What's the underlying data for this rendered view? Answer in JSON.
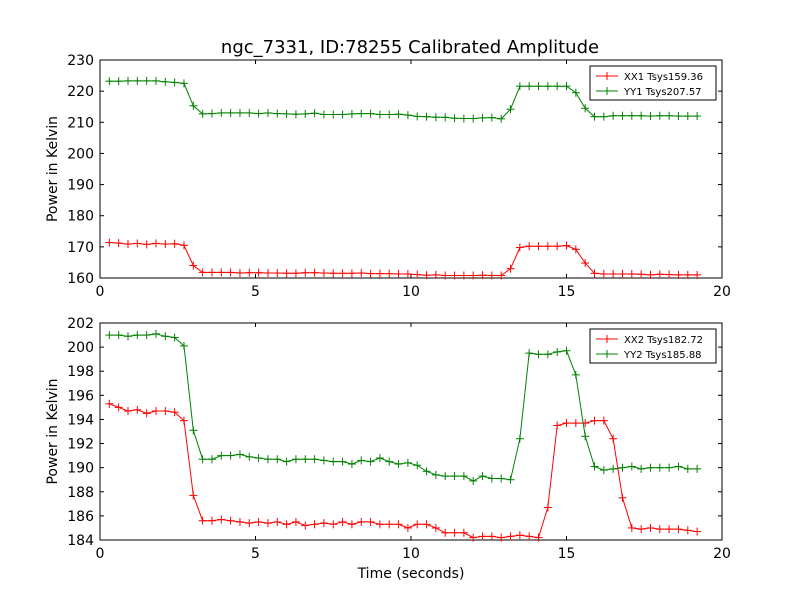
{
  "chart_data": [
    {
      "type": "line",
      "title": "ngc_7331, ID:78255 Calibrated Amplitude",
      "xlabel": "",
      "ylabel": "Power in Kelvin",
      "xlim": [
        0,
        20
      ],
      "ylim": [
        160,
        230
      ],
      "xticks": [
        "0",
        "5",
        "10",
        "15",
        "20"
      ],
      "yticks": [
        "160",
        "170",
        "180",
        "190",
        "200",
        "210",
        "220",
        "230"
      ],
      "legend_position": "top-right",
      "series": [
        {
          "name": "XX1 Tsys159.36",
          "color": "#ff0000",
          "x": [
            0.3,
            0.6,
            0.9,
            1.2,
            1.5,
            1.8,
            2.1,
            2.4,
            2.7,
            3.0,
            3.3,
            3.6,
            3.9,
            4.2,
            4.5,
            4.8,
            5.1,
            5.4,
            5.7,
            6.0,
            6.3,
            6.6,
            6.9,
            7.2,
            7.5,
            7.8,
            8.1,
            8.4,
            8.7,
            9.0,
            9.3,
            9.6,
            9.9,
            10.2,
            10.5,
            10.8,
            11.1,
            11.4,
            11.7,
            12.0,
            12.3,
            12.6,
            12.9,
            13.2,
            13.5,
            13.8,
            14.1,
            14.4,
            14.7,
            15.0,
            15.3,
            15.6,
            15.9,
            16.2,
            16.5,
            16.8,
            17.1,
            17.4,
            17.7,
            18.0,
            18.3,
            18.6,
            18.9,
            19.2
          ],
          "values": [
            171.4,
            171.2,
            170.9,
            171.1,
            170.8,
            171.1,
            170.9,
            171.0,
            170.5,
            164.0,
            161.8,
            161.8,
            161.8,
            161.8,
            161.6,
            161.7,
            161.7,
            161.6,
            161.6,
            161.5,
            161.5,
            161.7,
            161.7,
            161.6,
            161.5,
            161.5,
            161.5,
            161.6,
            161.4,
            161.4,
            161.4,
            161.3,
            161.3,
            161.1,
            160.9,
            161.0,
            160.8,
            160.8,
            160.8,
            160.8,
            160.9,
            160.8,
            160.8,
            163.0,
            169.8,
            170.2,
            170.2,
            170.2,
            170.2,
            170.4,
            169.2,
            164.8,
            161.5,
            161.3,
            161.3,
            161.3,
            161.3,
            161.2,
            161.0,
            161.2,
            161.1,
            161.0,
            161.0,
            161.0
          ]
        },
        {
          "name": "YY1 Tsys207.57",
          "color": "#008000",
          "x": [
            0.3,
            0.6,
            0.9,
            1.2,
            1.5,
            1.8,
            2.1,
            2.4,
            2.7,
            3.0,
            3.3,
            3.6,
            3.9,
            4.2,
            4.5,
            4.8,
            5.1,
            5.4,
            5.7,
            6.0,
            6.3,
            6.6,
            6.9,
            7.2,
            7.5,
            7.8,
            8.1,
            8.4,
            8.7,
            9.0,
            9.3,
            9.6,
            9.9,
            10.2,
            10.5,
            10.8,
            11.1,
            11.4,
            11.7,
            12.0,
            12.3,
            12.6,
            12.9,
            13.2,
            13.5,
            13.8,
            14.1,
            14.4,
            14.7,
            15.0,
            15.3,
            15.6,
            15.9,
            16.2,
            16.5,
            16.8,
            17.1,
            17.4,
            17.7,
            18.0,
            18.3,
            18.6,
            18.9,
            19.2
          ],
          "values": [
            223.2,
            223.2,
            223.3,
            223.3,
            223.3,
            223.3,
            223.0,
            222.8,
            222.5,
            215.3,
            212.7,
            212.8,
            213.0,
            213.0,
            213.0,
            213.0,
            212.8,
            213.0,
            212.8,
            212.7,
            212.6,
            212.7,
            212.9,
            212.5,
            212.5,
            212.5,
            212.7,
            212.8,
            212.8,
            212.5,
            212.5,
            212.6,
            212.3,
            211.9,
            211.8,
            211.6,
            211.6,
            211.3,
            211.2,
            211.2,
            211.4,
            211.5,
            211.1,
            214.2,
            221.6,
            221.6,
            221.6,
            221.6,
            221.6,
            221.6,
            219.5,
            214.5,
            211.8,
            211.8,
            212.1,
            212.1,
            212.1,
            212.1,
            212.0,
            212.1,
            212.1,
            212.0,
            212.0,
            212.0
          ]
        }
      ]
    },
    {
      "type": "line",
      "title": "",
      "xlabel": "Time (seconds)",
      "ylabel": "Power in Kelvin",
      "xlim": [
        0,
        20
      ],
      "ylim": [
        184,
        202
      ],
      "xticks": [
        "0",
        "5",
        "10",
        "15",
        "20"
      ],
      "yticks": [
        "184",
        "186",
        "188",
        "190",
        "192",
        "194",
        "196",
        "198",
        "200",
        "202"
      ],
      "legend_position": "top-right",
      "series": [
        {
          "name": "XX2 Tsys182.72",
          "color": "#ff0000",
          "x": [
            0.3,
            0.6,
            0.9,
            1.2,
            1.5,
            1.8,
            2.1,
            2.4,
            2.7,
            3.0,
            3.3,
            3.6,
            3.9,
            4.2,
            4.5,
            4.8,
            5.1,
            5.4,
            5.7,
            6.0,
            6.3,
            6.6,
            6.9,
            7.2,
            7.5,
            7.8,
            8.1,
            8.4,
            8.7,
            9.0,
            9.3,
            9.6,
            9.9,
            10.2,
            10.5,
            10.8,
            11.1,
            11.4,
            11.7,
            12.0,
            12.3,
            12.6,
            12.9,
            13.2,
            13.5,
            13.8,
            14.1,
            14.4,
            14.7,
            15.0,
            15.3,
            15.6,
            15.9,
            16.2,
            16.5,
            16.8,
            17.1,
            17.4,
            17.7,
            18.0,
            18.3,
            18.6,
            18.9,
            19.2
          ],
          "values": [
            195.3,
            195.0,
            194.7,
            194.8,
            194.5,
            194.7,
            194.7,
            194.6,
            193.9,
            187.7,
            185.6,
            185.6,
            185.7,
            185.6,
            185.5,
            185.4,
            185.5,
            185.4,
            185.5,
            185.3,
            185.5,
            185.2,
            185.3,
            185.4,
            185.3,
            185.5,
            185.3,
            185.5,
            185.5,
            185.3,
            185.3,
            185.3,
            185.0,
            185.3,
            185.3,
            185.0,
            184.6,
            184.6,
            184.6,
            184.2,
            184.3,
            184.3,
            184.2,
            184.3,
            184.4,
            184.3,
            184.2,
            186.7,
            193.5,
            193.7,
            193.7,
            193.7,
            193.9,
            193.9,
            192.4,
            187.5,
            185.0,
            184.9,
            185.0,
            184.9,
            184.9,
            184.9,
            184.8,
            184.7
          ]
        },
        {
          "name": "YY2 Tsys185.88",
          "color": "#008000",
          "x": [
            0.3,
            0.6,
            0.9,
            1.2,
            1.5,
            1.8,
            2.1,
            2.4,
            2.7,
            3.0,
            3.3,
            3.6,
            3.9,
            4.2,
            4.5,
            4.8,
            5.1,
            5.4,
            5.7,
            6.0,
            6.3,
            6.6,
            6.9,
            7.2,
            7.5,
            7.8,
            8.1,
            8.4,
            8.7,
            9.0,
            9.3,
            9.6,
            9.9,
            10.2,
            10.5,
            10.8,
            11.1,
            11.4,
            11.7,
            12.0,
            12.3,
            12.6,
            12.9,
            13.2,
            13.5,
            13.8,
            14.1,
            14.4,
            14.7,
            15.0,
            15.3,
            15.6,
            15.9,
            16.2,
            16.5,
            16.8,
            17.1,
            17.4,
            17.7,
            18.0,
            18.3,
            18.6,
            18.9,
            19.2
          ],
          "values": [
            201.0,
            201.0,
            200.9,
            201.0,
            201.0,
            201.1,
            200.9,
            200.8,
            200.1,
            193.1,
            190.7,
            190.7,
            191.0,
            191.0,
            191.1,
            190.9,
            190.8,
            190.7,
            190.7,
            190.5,
            190.7,
            190.7,
            190.7,
            190.6,
            190.5,
            190.5,
            190.3,
            190.6,
            190.5,
            190.8,
            190.5,
            190.3,
            190.4,
            190.2,
            189.7,
            189.4,
            189.3,
            189.3,
            189.3,
            188.9,
            189.3,
            189.1,
            189.1,
            189.0,
            192.4,
            199.5,
            199.4,
            199.4,
            199.6,
            199.7,
            197.7,
            192.6,
            190.1,
            189.8,
            189.9,
            190.0,
            190.1,
            189.9,
            190.0,
            190.0,
            190.0,
            190.1,
            189.9,
            189.9
          ]
        }
      ]
    }
  ]
}
